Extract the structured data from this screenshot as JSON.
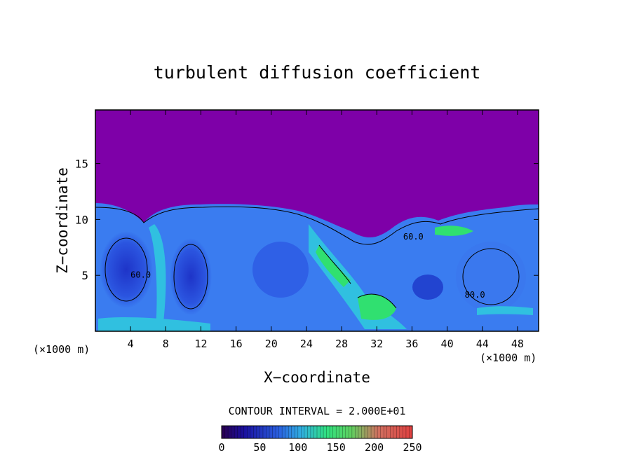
{
  "chart_data": {
    "type": "heatmap",
    "title": "turbulent diffusion coefficient",
    "xlabel": "X−coordinate",
    "ylabel": "Z−coordinate",
    "x_unit_left": "(×1000 m)",
    "x_unit_right": "(×1000 m)",
    "xlim": [
      0,
      50.4
    ],
    "ylim": [
      0,
      19.8
    ],
    "x_ticks": [
      4,
      8,
      12,
      16,
      20,
      24,
      28,
      32,
      36,
      40,
      44,
      48
    ],
    "x_tick_labels": [
      "4",
      "8",
      "12",
      "16",
      "20",
      "24",
      "28",
      "32",
      "36",
      "40",
      "44",
      "48"
    ],
    "y_ticks": [
      5,
      10,
      15
    ],
    "y_tick_labels": [
      "5",
      "10",
      "15"
    ],
    "contour_interval_text": "CONTOUR INTERVAL = 2.000E+01",
    "contour_labels": [
      {
        "text": "60.0",
        "x": 4.0,
        "y": 4.8
      },
      {
        "text": "60.0",
        "x": 35.0,
        "y": 8.2
      },
      {
        "text": "80.0",
        "x": 42.0,
        "y": 3.0
      }
    ],
    "colorbar": {
      "range": [
        0,
        250
      ],
      "tick_labels": [
        "0",
        "50",
        "100",
        "150",
        "200",
        "250"
      ]
    },
    "colors": {
      "background_purple": "#7e00a8",
      "low_blue": "#1f3fd8",
      "mid_blue": "#3a7cf0",
      "cyan": "#30c0e0",
      "green": "#30e070"
    }
  }
}
